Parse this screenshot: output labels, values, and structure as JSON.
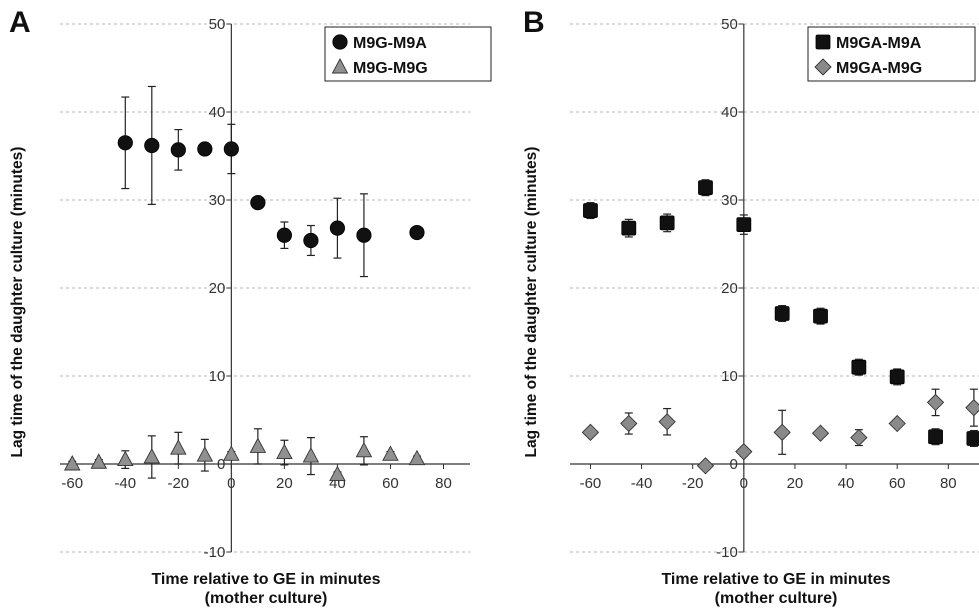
{
  "panels": [
    {
      "letter": "A"
    },
    {
      "letter": "B"
    }
  ],
  "chart_data": [
    {
      "type": "scatter",
      "panel": "A",
      "xlabel": "Time relative to GE in minutes\n(mother culture)",
      "ylabel": "Lag time of the daughter culture (minutes)",
      "xlim": [
        -65,
        90
      ],
      "ylim": [
        -10,
        50
      ],
      "xticks": [
        -60,
        -40,
        -20,
        0,
        20,
        40,
        60,
        80
      ],
      "yticks": [
        -10,
        0,
        10,
        20,
        30,
        40,
        50
      ],
      "grid": true,
      "legend_position": "top-right",
      "series": [
        {
          "name": "M9G-M9A",
          "marker": "circle",
          "color": "#111111",
          "points": [
            {
              "x": -40,
              "y": 36.5,
              "err": 5.2
            },
            {
              "x": -30,
              "y": 36.2,
              "err": 6.7
            },
            {
              "x": -20,
              "y": 35.7,
              "err": 2.3
            },
            {
              "x": -10,
              "y": 35.8,
              "err": 0.6
            },
            {
              "x": 0,
              "y": 35.8,
              "err": 2.8
            },
            {
              "x": 10,
              "y": 29.7,
              "err": 0.3
            },
            {
              "x": 20,
              "y": 26.0,
              "err": 1.5
            },
            {
              "x": 30,
              "y": 25.4,
              "err": 1.7
            },
            {
              "x": 40,
              "y": 26.8,
              "err": 3.4
            },
            {
              "x": 50,
              "y": 26.0,
              "err": 4.7
            },
            {
              "x": 70,
              "y": 26.3,
              "err": 0.3
            }
          ]
        },
        {
          "name": "M9G-M9G",
          "marker": "triangle",
          "color": "#909090",
          "points": [
            {
              "x": -60,
              "y": 0.0,
              "err": 0.3
            },
            {
              "x": -50,
              "y": 0.2,
              "err": 0.3
            },
            {
              "x": -40,
              "y": 0.5,
              "err": 1.0
            },
            {
              "x": -30,
              "y": 0.8,
              "err": 2.4
            },
            {
              "x": -20,
              "y": 1.8,
              "err": 1.8
            },
            {
              "x": -10,
              "y": 1.0,
              "err": 1.8
            },
            {
              "x": 0,
              "y": 1.1,
              "err": 0.3
            },
            {
              "x": 10,
              "y": 2.0,
              "err": 2.0
            },
            {
              "x": 20,
              "y": 1.3,
              "err": 1.4
            },
            {
              "x": 30,
              "y": 0.9,
              "err": 2.1
            },
            {
              "x": 40,
              "y": -1.2,
              "err": 0.3
            },
            {
              "x": 50,
              "y": 1.5,
              "err": 1.6
            },
            {
              "x": 60,
              "y": 1.1,
              "err": 0.3
            },
            {
              "x": 70,
              "y": 0.6,
              "err": 0.3
            }
          ]
        }
      ]
    },
    {
      "type": "scatter",
      "panel": "B",
      "xlabel": "Time relative to GE in minutes\n(mother culture)",
      "ylabel": "Lag time of the daughter culture (minutes)",
      "xlim": [
        -68,
        92
      ],
      "ylim": [
        -10,
        50
      ],
      "xticks": [
        -60,
        -40,
        -20,
        0,
        20,
        40,
        60,
        80
      ],
      "yticks": [
        -10,
        0,
        10,
        20,
        30,
        40,
        50
      ],
      "grid": true,
      "legend_position": "top-right",
      "series": [
        {
          "name": "M9GA-M9A",
          "marker": "square",
          "color": "#111111",
          "points": [
            {
              "x": -60,
              "y": 28.8,
              "err": 0.9
            },
            {
              "x": -45,
              "y": 26.8,
              "err": 1.0
            },
            {
              "x": -30,
              "y": 27.4,
              "err": 1.0
            },
            {
              "x": -15,
              "y": 31.4,
              "err": 0.9
            },
            {
              "x": 0,
              "y": 27.2,
              "err": 1.1
            },
            {
              "x": 15,
              "y": 17.1,
              "err": 0.9
            },
            {
              "x": 30,
              "y": 16.8,
              "err": 0.9
            },
            {
              "x": 45,
              "y": 11.0,
              "err": 0.9
            },
            {
              "x": 60,
              "y": 9.9,
              "err": 0.9
            },
            {
              "x": 75,
              "y": 3.1,
              "err": 0.9
            },
            {
              "x": 90,
              "y": 2.9,
              "err": 0.9
            }
          ]
        },
        {
          "name": "M9GA-M9G",
          "marker": "diamond",
          "color": "#8a8a8a",
          "points": [
            {
              "x": -60,
              "y": 3.6,
              "err": 0.3
            },
            {
              "x": -45,
              "y": 4.6,
              "err": 1.2
            },
            {
              "x": -30,
              "y": 4.8,
              "err": 1.5
            },
            {
              "x": -15,
              "y": -0.2,
              "err": 0.3
            },
            {
              "x": 0,
              "y": 1.4,
              "err": 0.5
            },
            {
              "x": 15,
              "y": 3.6,
              "err": 2.5
            },
            {
              "x": 30,
              "y": 3.5,
              "err": 0.3
            },
            {
              "x": 45,
              "y": 3.0,
              "err": 0.9
            },
            {
              "x": 60,
              "y": 4.6,
              "err": 0.3
            },
            {
              "x": 75,
              "y": 7.0,
              "err": 1.5
            },
            {
              "x": 90,
              "y": 6.4,
              "err": 2.1
            }
          ]
        }
      ]
    }
  ]
}
